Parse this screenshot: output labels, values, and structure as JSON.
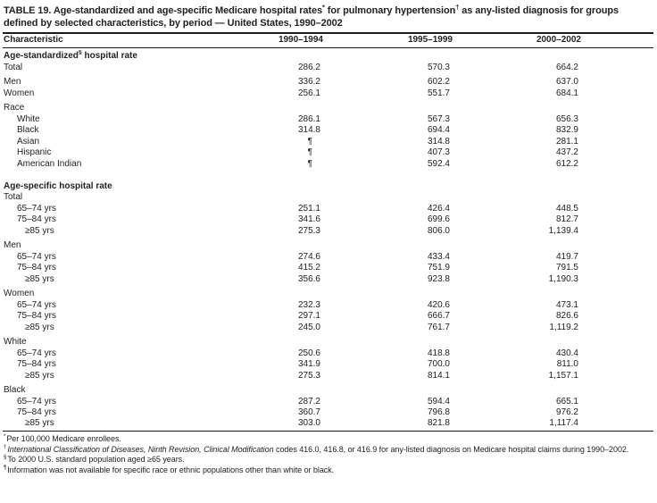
{
  "table": {
    "title_rich": [
      "TABLE 19. Age-standardized and age-specific Medicare hospital rates",
      {
        "sup": "*"
      },
      " for pulmonary hypertension",
      {
        "sup": "†"
      },
      " as any-listed diagnosis for groups defined by selected characteristics, by period — United States, 1990–2002"
    ],
    "columns": [
      "Characteristic",
      "1990–1994",
      "1995–1999",
      "2000–2002"
    ],
    "sections": [
      {
        "header_rich": [
          "Age-standardized",
          {
            "sup": "§"
          },
          " hospital rate"
        ],
        "groups": [
          {
            "rows": [
              {
                "label": "Total",
                "indent": 0,
                "values": [
                  "286.2",
                  "570.3",
                  "664.2"
                ]
              }
            ]
          },
          {
            "rows": [
              {
                "label": "Men",
                "indent": 0,
                "values": [
                  "336.2",
                  "602.2",
                  "637.0"
                ]
              },
              {
                "label": "Women",
                "indent": 0,
                "values": [
                  "256.1",
                  "551.7",
                  "684.1"
                ]
              }
            ]
          },
          {
            "label": "Race",
            "rows": [
              {
                "label": "White",
                "indent": 1,
                "values": [
                  "286.1",
                  "567.3",
                  "656.3"
                ]
              },
              {
                "label": "Black",
                "indent": 1,
                "values": [
                  "314.8",
                  "694.4",
                  "832.9"
                ]
              },
              {
                "label": "Asian",
                "indent": 1,
                "values": [
                  "¶",
                  "314.8",
                  "281.1"
                ]
              },
              {
                "label": "Hispanic",
                "indent": 1,
                "values": [
                  "¶",
                  "407.3",
                  "437.2"
                ]
              },
              {
                "label": "American Indian",
                "indent": 1,
                "values": [
                  "¶",
                  "592.4",
                  "612.2"
                ]
              }
            ]
          }
        ]
      },
      {
        "header_rich": [
          "Age-specific hospital rate"
        ],
        "groups": [
          {
            "label": "Total",
            "rows": [
              {
                "label": "65–74 yrs",
                "indent": 1,
                "values": [
                  "251.1",
                  "426.4",
                  "448.5"
                ]
              },
              {
                "label": "75–84 yrs",
                "indent": 1,
                "values": [
                  "341.6",
                  "699.6",
                  "812.7"
                ]
              },
              {
                "label": "≥85 yrs",
                "indent": 2,
                "values": [
                  "275.3",
                  "806.0",
                  "1,139.4"
                ]
              }
            ]
          },
          {
            "label": "Men",
            "rows": [
              {
                "label": "65–74 yrs",
                "indent": 1,
                "values": [
                  "274.6",
                  "433.4",
                  "419.7"
                ]
              },
              {
                "label": "75–84 yrs",
                "indent": 1,
                "values": [
                  "415.2",
                  "751.9",
                  "791.5"
                ]
              },
              {
                "label": "≥85 yrs",
                "indent": 2,
                "values": [
                  "356.6",
                  "923.8",
                  "1,190.3"
                ]
              }
            ]
          },
          {
            "label": "Women",
            "rows": [
              {
                "label": "65–74 yrs",
                "indent": 1,
                "values": [
                  "232.3",
                  "420.6",
                  "473.1"
                ]
              },
              {
                "label": "75–84 yrs",
                "indent": 1,
                "values": [
                  "297.1",
                  "666.7",
                  "826.6"
                ]
              },
              {
                "label": "≥85 yrs",
                "indent": 2,
                "values": [
                  "245.0",
                  "761.7",
                  "1,119.2"
                ]
              }
            ]
          },
          {
            "label": "White",
            "rows": [
              {
                "label": "65–74 yrs",
                "indent": 1,
                "values": [
                  "250.6",
                  "418.8",
                  "430.4"
                ]
              },
              {
                "label": "75–84 yrs",
                "indent": 1,
                "values": [
                  "341.9",
                  "700.0",
                  "811.0"
                ]
              },
              {
                "label": "≥85 yrs",
                "indent": 2,
                "values": [
                  "275.3",
                  "814.1",
                  "1,157.1"
                ]
              }
            ]
          },
          {
            "label": "Black",
            "rows": [
              {
                "label": "65–74 yrs",
                "indent": 1,
                "values": [
                  "287.2",
                  "594.4",
                  "665.1"
                ]
              },
              {
                "label": "75–84 yrs",
                "indent": 1,
                "values": [
                  "360.7",
                  "796.8",
                  "976.2"
                ]
              },
              {
                "label": "≥85 yrs",
                "indent": 2,
                "values": [
                  "303.0",
                  "821.8",
                  "1,117.4"
                ]
              }
            ]
          }
        ]
      }
    ],
    "footnotes": [
      {
        "marker": "*",
        "text_rich": [
          "Per 100,000 Medicare enrollees."
        ]
      },
      {
        "marker": "†",
        "text_rich": [
          {
            "i": "International Classification of Diseases, Ninth Revision, Clinical Modification"
          },
          " codes 416.0, 416.8, or 416.9 for any-listed diagnosis on Medicare hospital claims during 1990–2002."
        ]
      },
      {
        "marker": "§",
        "text_rich": [
          "To 2000 U.S. standard population aged ≥65 years."
        ]
      },
      {
        "marker": "¶",
        "text_rich": [
          "Information was not available for specific race or ethnic populations other than white or black."
        ]
      }
    ]
  }
}
